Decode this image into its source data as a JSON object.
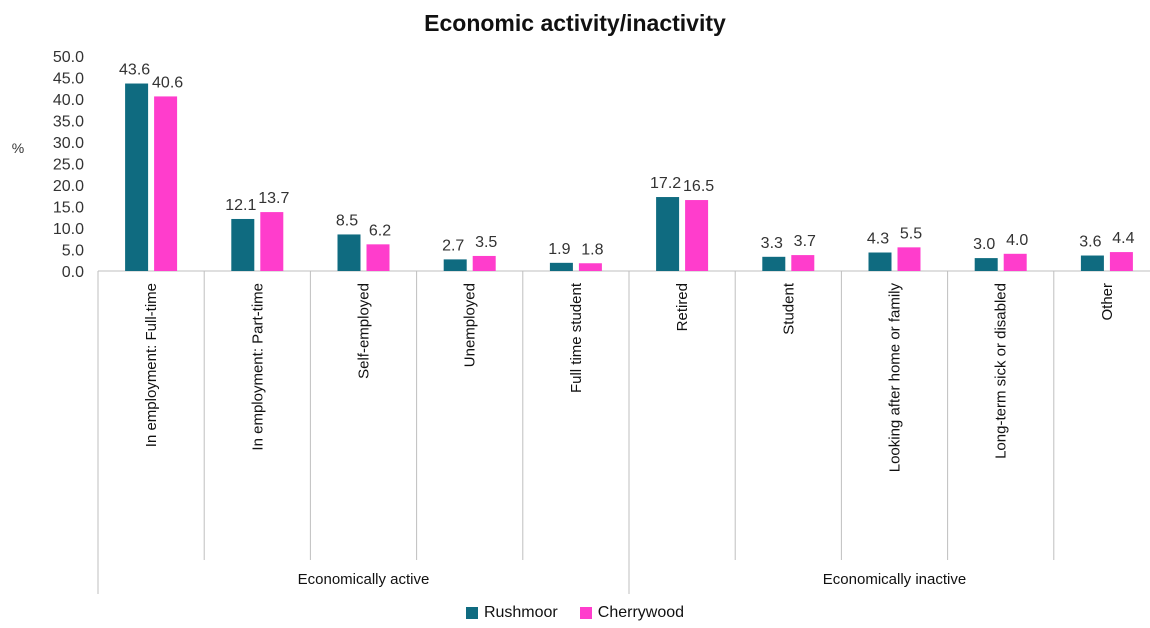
{
  "chart_data": {
    "type": "bar",
    "title": "Economic activity/inactivity",
    "ylabel": "%",
    "ylim": [
      0,
      50
    ],
    "yticks": [
      "0.0",
      "5.0",
      "10.0",
      "15.0",
      "20.0",
      "25.0",
      "30.0",
      "35.0",
      "40.0",
      "45.0",
      "50.0"
    ],
    "categories": [
      "In employment: Full-time",
      "In employment: Part-time",
      "Self-employed",
      "Unemployed",
      "Full time student",
      "Retired",
      "Student",
      "Looking after home or family",
      "Long-term sick or disabled",
      "Other"
    ],
    "groups": [
      {
        "label": "Economically active",
        "count": 5
      },
      {
        "label": "Economically inactive",
        "count": 5
      }
    ],
    "series": [
      {
        "name": "Rushmoor",
        "color": "#0f6b80",
        "values": [
          43.6,
          12.1,
          8.5,
          2.7,
          1.9,
          17.2,
          3.3,
          4.3,
          3.0,
          3.6
        ],
        "labels": [
          "43.6",
          "12.1",
          "8.5",
          "2.7",
          "1.9",
          "17.2",
          "3.3",
          "4.3",
          "3.0",
          "3.6"
        ]
      },
      {
        "name": "Cherrywood",
        "color": "#ff3dcc",
        "values": [
          40.6,
          13.7,
          6.2,
          3.5,
          1.8,
          16.5,
          3.7,
          5.5,
          4.0,
          4.4
        ],
        "labels": [
          "40.6",
          "13.7",
          "6.2",
          "3.5",
          "1.8",
          "16.5",
          "3.7",
          "5.5",
          "4.0",
          "4.4"
        ]
      }
    ],
    "legend": "bottom",
    "grid": false
  }
}
